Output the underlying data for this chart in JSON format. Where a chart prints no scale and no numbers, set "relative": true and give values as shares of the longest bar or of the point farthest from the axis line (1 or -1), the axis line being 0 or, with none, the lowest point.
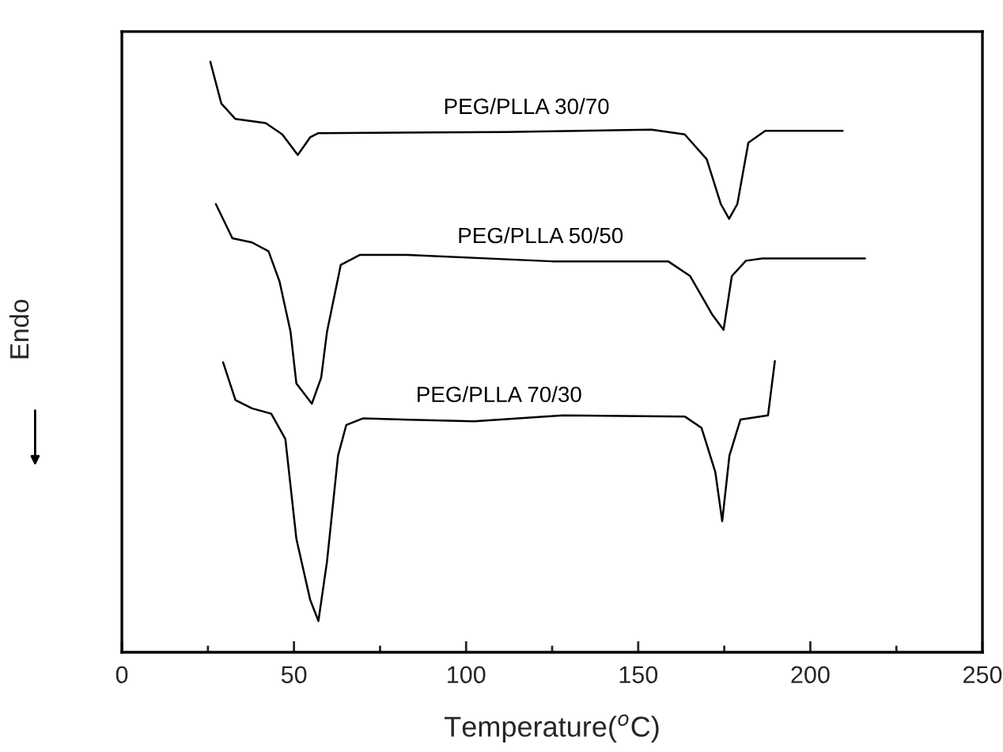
{
  "chart_data": {
    "type": "line",
    "relative": true,
    "xlabel": "Temperature($^{o}$C)",
    "ylabel": "Endo",
    "xlim": [
      0,
      250
    ],
    "xticks": [
      0,
      {
        "value": 25,
        "label": null
      },
      50,
      {
        "value": 75,
        "label": null
      },
      100,
      {
        "value": 125,
        "label": null
      },
      150,
      {
        "value": 175,
        "label": null
      },
      200,
      {
        "value": 225,
        "label": null
      },
      250
    ],
    "grid": false,
    "legend": false,
    "marker": "none",
    "line_style": "solid",
    "series": [
      {
        "name": "PEG/PLLA 30/70",
        "color": "#000000",
        "x": [
          25.7,
          28.9,
          33.0,
          41.8,
          46.6,
          51.1,
          54.7,
          57.1,
          111.9,
          153.8,
          163.5,
          169.9,
          174.0,
          176.4,
          178.8,
          182.0,
          186.9,
          209.4
        ],
        "values": [
          1.0,
          0.929,
          0.903,
          0.896,
          0.877,
          0.842,
          0.872,
          0.879,
          0.881,
          0.885,
          0.877,
          0.835,
          0.759,
          0.734,
          0.759,
          0.863,
          0.883,
          0.883
        ]
      },
      {
        "name": "PEG/PLLA 50/50",
        "color": "#000000",
        "x": [
          27.3,
          32.1,
          37.8,
          42.6,
          45.8,
          49.0,
          50.7,
          55.2,
          57.9,
          59.6,
          63.6,
          69.2,
          82.9,
          124.9,
          158.7,
          165.1,
          171.6,
          174.8,
          177.2,
          181.3,
          186.1,
          215.9
        ],
        "values": [
          0.759,
          0.701,
          0.694,
          0.679,
          0.628,
          0.543,
          0.455,
          0.421,
          0.465,
          0.543,
          0.656,
          0.673,
          0.673,
          0.662,
          0.662,
          0.637,
          0.571,
          0.546,
          0.637,
          0.663,
          0.667,
          0.667
        ]
      },
      {
        "name": "PEG/PLLA 70/30",
        "color": "#000000",
        "x": [
          29.4,
          33.0,
          37.8,
          43.4,
          47.5,
          50.7,
          54.7,
          57.1,
          59.6,
          62.8,
          65.2,
          70.0,
          102.3,
          128.1,
          163.6,
          168.4,
          172.4,
          174.4,
          176.5,
          179.7,
          187.7,
          189.7
        ],
        "values": [
          0.491,
          0.427,
          0.413,
          0.404,
          0.361,
          0.192,
          0.089,
          0.053,
          0.154,
          0.333,
          0.385,
          0.396,
          0.391,
          0.401,
          0.399,
          0.38,
          0.305,
          0.222,
          0.333,
          0.394,
          0.401,
          0.493
        ]
      }
    ]
  }
}
